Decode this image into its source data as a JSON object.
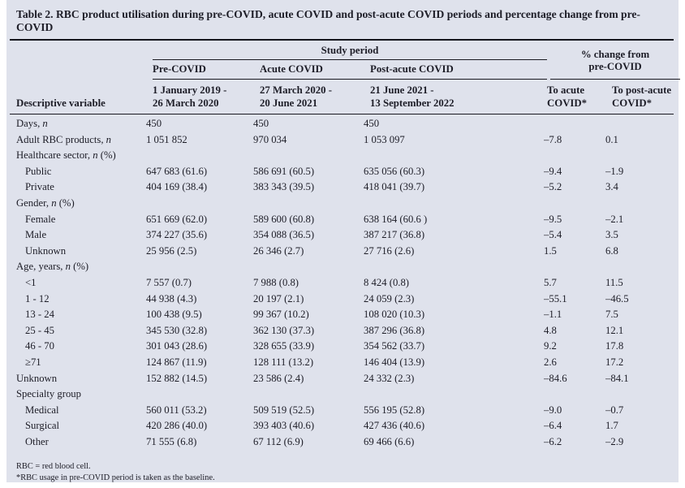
{
  "title": "Table 2. RBC product utilisation during pre-COVID, acute COVID and post-acute COVID periods and percentage change from pre-COVID",
  "header": {
    "study_period": "Study period",
    "pct_change": "% change from\npre-COVID",
    "periods": [
      "Pre-COVID",
      "Acute COVID",
      "Post-acute COVID"
    ],
    "date_ranges": [
      "1 January 2019 -\n26 March 2020",
      "27 March 2020 -\n20 June 2021",
      "21 June 2021 -\n13 September 2022"
    ],
    "descriptive_variable": "Descriptive variable",
    "change_cols": [
      "To acute\nCOVID*",
      "To post-acute\nCOVID*"
    ]
  },
  "rows": [
    {
      "label": [
        {
          "t": "Days, "
        },
        {
          "t": "n",
          "i": true
        }
      ],
      "indent": false,
      "values": [
        "450",
        "450",
        "450",
        "",
        ""
      ]
    },
    {
      "label": [
        {
          "t": "Adult RBC products, "
        },
        {
          "t": "n",
          "i": true
        }
      ],
      "indent": false,
      "values": [
        "1 051 852",
        "970 034",
        "1 053 097",
        "–7.8",
        "0.1"
      ]
    },
    {
      "label": [
        {
          "t": "Healthcare sector, "
        },
        {
          "t": "n",
          "i": true
        },
        {
          "t": " (%)"
        }
      ],
      "indent": false,
      "values": [
        "",
        "",
        "",
        "",
        ""
      ]
    },
    {
      "label": [
        {
          "t": "Public"
        }
      ],
      "indent": true,
      "values": [
        "647 683 (61.6)",
        "586 691 (60.5)",
        "635 056 (60.3)",
        "–9.4",
        "–1.9"
      ]
    },
    {
      "label": [
        {
          "t": "Private"
        }
      ],
      "indent": true,
      "values": [
        "404 169 (38.4)",
        "383 343 (39.5)",
        "418 041 (39.7)",
        "–5.2",
        "3.4"
      ]
    },
    {
      "label": [
        {
          "t": "Gender, "
        },
        {
          "t": "n",
          "i": true
        },
        {
          "t": " (%)"
        }
      ],
      "indent": false,
      "values": [
        "",
        "",
        "",
        "",
        ""
      ]
    },
    {
      "label": [
        {
          "t": "Female"
        }
      ],
      "indent": true,
      "values": [
        "651 669 (62.0)",
        "589 600 (60.8)",
        "638 164 (60.6 )",
        "–9.5",
        "–2.1"
      ]
    },
    {
      "label": [
        {
          "t": "Male"
        }
      ],
      "indent": true,
      "values": [
        "374 227 (35.6)",
        "354 088 (36.5)",
        "387 217 (36.8)",
        "–5.4",
        "3.5"
      ]
    },
    {
      "label": [
        {
          "t": "Unknown"
        }
      ],
      "indent": true,
      "values": [
        "25 956 (2.5)",
        "26 346 (2.7)",
        "27 716 (2.6)",
        "1.5",
        "6.8"
      ]
    },
    {
      "label": [
        {
          "t": "Age, years, "
        },
        {
          "t": "n",
          "i": true
        },
        {
          "t": " (%)"
        }
      ],
      "indent": false,
      "values": [
        "",
        "",
        "",
        "",
        ""
      ]
    },
    {
      "label": [
        {
          "t": "<1"
        }
      ],
      "indent": true,
      "values": [
        "7 557 (0.7)",
        "7 988 (0.8)",
        "8 424 (0.8)",
        "5.7",
        "11.5"
      ]
    },
    {
      "label": [
        {
          "t": "1 - 12"
        }
      ],
      "indent": true,
      "values": [
        "44 938 (4.3)",
        "20 197 (2.1)",
        "24 059 (2.3)",
        "–55.1",
        "–46.5"
      ]
    },
    {
      "label": [
        {
          "t": "13 - 24"
        }
      ],
      "indent": true,
      "values": [
        "100 438 (9.5)",
        "99 367 (10.2)",
        "108 020 (10.3)",
        "–1.1",
        "7.5"
      ]
    },
    {
      "label": [
        {
          "t": "25 - 45"
        }
      ],
      "indent": true,
      "values": [
        "345 530 (32.8)",
        "362 130 (37.3)",
        "387 296 (36.8)",
        "4.8",
        "12.1"
      ]
    },
    {
      "label": [
        {
          "t": "46 - 70"
        }
      ],
      "indent": true,
      "values": [
        "301 043 (28.6)",
        "328 655 (33.9)",
        "354 562 (33.7)",
        "9.2",
        "17.8"
      ]
    },
    {
      "label": [
        {
          "t": "≥71"
        }
      ],
      "indent": true,
      "values": [
        "124 867 (11.9)",
        "128 111 (13.2)",
        "146 404 (13.9)",
        "2.6",
        "17.2"
      ]
    },
    {
      "label": [
        {
          "t": "Unknown"
        }
      ],
      "indent": false,
      "values": [
        "152 882 (14.5)",
        "23 586 (2.4)",
        "24 332 (2.3)",
        "–84.6",
        "–84.1"
      ]
    },
    {
      "label": [
        {
          "t": "Specialty group"
        }
      ],
      "indent": false,
      "values": [
        "",
        "",
        "",
        "",
        ""
      ]
    },
    {
      "label": [
        {
          "t": "Medical"
        }
      ],
      "indent": true,
      "values": [
        "560 011 (53.2)",
        "509 519 (52.5)",
        "556 195 (52.8)",
        "–9.0",
        "–0.7"
      ]
    },
    {
      "label": [
        {
          "t": "Surgical"
        }
      ],
      "indent": true,
      "values": [
        "420 286 (40.0)",
        "393 403 (40.6)",
        "427 436 (40.6)",
        "–6.4",
        "1.7"
      ]
    },
    {
      "label": [
        {
          "t": "Other"
        }
      ],
      "indent": true,
      "values": [
        "71 555 (6.8)",
        "67 112 (6.9)",
        "69 466 (6.6)",
        "–6.2",
        "–2.9"
      ]
    }
  ],
  "footnotes": [
    "RBC = red blood cell.",
    "*RBC usage in pre-COVID period is taken as the baseline."
  ],
  "colors": {
    "panel_bg": "#dfe2ec",
    "text": "#1d1d27",
    "rule": "#1a1a22"
  }
}
